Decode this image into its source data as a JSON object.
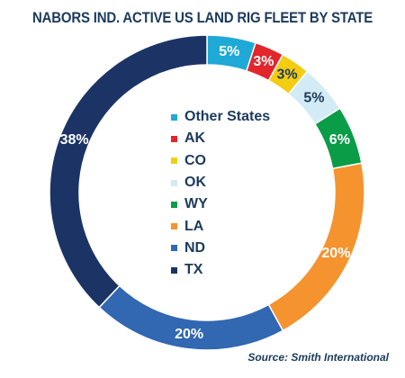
{
  "chart_data": {
    "type": "pie",
    "donut": true,
    "title": "NABORS IND. ACTIVE US LAND RIG FLEET BY STATE",
    "source": "Source: Smith International",
    "legend_position": "center",
    "slices": [
      {
        "name": "Other States",
        "value": 5,
        "label": "5%",
        "color": "#1fa9d6",
        "label_color": "#ffffff"
      },
      {
        "name": "AK",
        "value": 3,
        "label": "3%",
        "color": "#e3262c",
        "label_color": "#ffffff"
      },
      {
        "name": "CO",
        "value": 3,
        "label": "3%",
        "color": "#f4cc12",
        "label_color": "#1b3a5c"
      },
      {
        "name": "OK",
        "value": 5,
        "label": "5%",
        "color": "#d3ebf4",
        "label_color": "#1b3a5c"
      },
      {
        "name": "WY",
        "value": 6,
        "label": "6%",
        "color": "#0b9c48",
        "label_color": "#ffffff"
      },
      {
        "name": "LA",
        "value": 20,
        "label": "20%",
        "color": "#f5932f",
        "label_color": "#ffffff"
      },
      {
        "name": "ND",
        "value": 20,
        "label": "20%",
        "color": "#3267b1",
        "label_color": "#ffffff"
      },
      {
        "name": "TX",
        "value": 38,
        "label": "38%",
        "color": "#1b3465",
        "label_color": "#ffffff"
      }
    ]
  }
}
